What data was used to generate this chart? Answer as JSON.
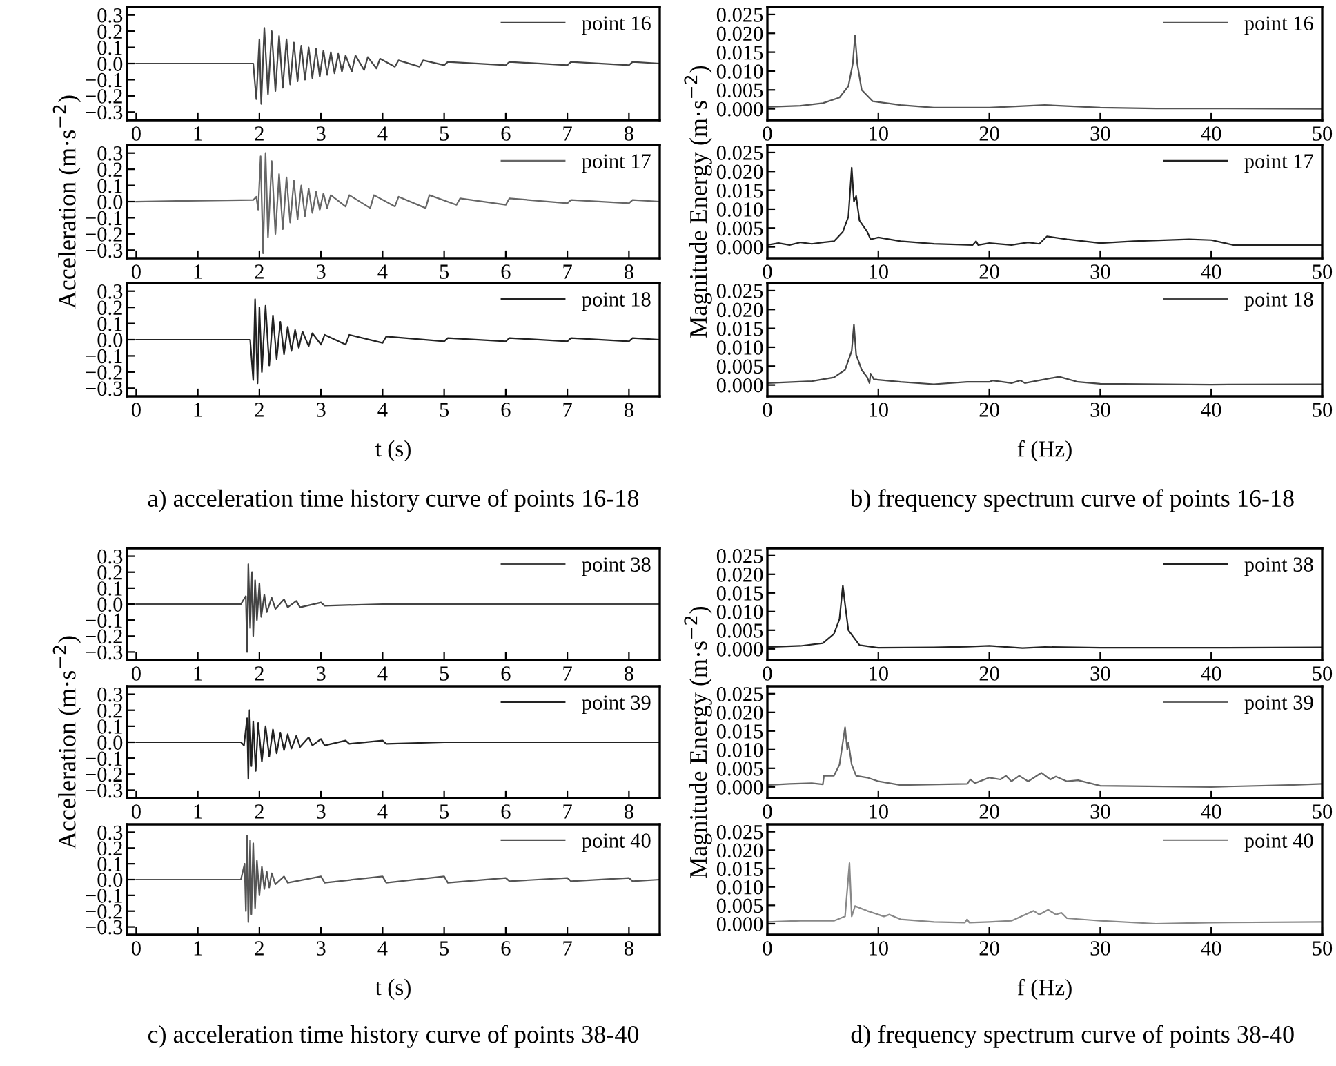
{
  "chart_data": [
    {
      "type": "line",
      "xlim": [
        -0.15,
        8.5
      ],
      "xticks": [
        0,
        1,
        2,
        3,
        4,
        5,
        6,
        7,
        8
      ],
      "ylim": [
        -0.35,
        0.35
      ],
      "yticks": [
        0.3,
        0.2,
        0.1,
        {
          "value": 0,
          "label": "0.0"
        },
        {
          "value": -0.1,
          "label": "−0.1"
        },
        {
          "value": -0.2,
          "label": "−0.2"
        },
        {
          "value": -0.3,
          "label": "−0.3"
        }
      ],
      "legend": "top right",
      "series": [
        {
          "name": "point 16",
          "color": "#444444",
          "x": [
            0,
            1.9,
            1.95,
            2.0,
            2.03,
            2.08,
            2.14,
            2.2,
            2.26,
            2.32,
            2.38,
            2.44,
            2.5,
            2.56,
            2.62,
            2.68,
            2.74,
            2.8,
            2.86,
            2.92,
            2.98,
            3.04,
            3.1,
            3.16,
            3.22,
            3.28,
            3.34,
            3.4,
            3.5,
            3.56,
            3.7,
            3.76,
            3.9,
            3.96,
            4.2,
            4.26,
            4.6,
            4.66,
            5.0,
            5.06,
            6,
            6.06,
            7,
            7.06,
            8,
            8.06,
            8.5
          ],
          "values": [
            0,
            0,
            -0.22,
            0.15,
            -0.25,
            0.22,
            -0.19,
            0.2,
            -0.17,
            0.17,
            -0.15,
            0.15,
            -0.13,
            0.13,
            -0.11,
            0.11,
            -0.1,
            0.1,
            -0.09,
            0.09,
            -0.08,
            0.08,
            -0.07,
            0.07,
            -0.06,
            0.06,
            -0.05,
            0.05,
            -0.05,
            0.05,
            -0.04,
            0.04,
            -0.03,
            0.03,
            -0.02,
            0.02,
            -0.02,
            0.02,
            -0.01,
            0.01,
            -0.01,
            0.01,
            -0.01,
            0.01,
            -0.01,
            0.01,
            0
          ]
        }
      ]
    },
    {
      "type": "line",
      "xlim": [
        0,
        50
      ],
      "xticks": [
        0,
        10,
        20,
        30,
        40,
        50
      ],
      "ylim": [
        -0.003,
        0.027
      ],
      "yticks": [
        0.025,
        {
          "value": 0.02,
          "label": "0.020"
        },
        0.015,
        {
          "value": 0.01,
          "label": "0.010"
        },
        0.005,
        {
          "value": 0,
          "label": "0.000"
        }
      ],
      "legend": "top right",
      "series": [
        {
          "name": "point 16",
          "color": "#555555",
          "x": [
            0,
            3,
            5,
            6.5,
            7.3,
            7.7,
            7.9,
            8.1,
            8.5,
            9.5,
            12,
            15,
            20,
            25,
            28,
            30,
            35,
            40,
            50
          ],
          "values": [
            0.0005,
            0.0008,
            0.0015,
            0.003,
            0.006,
            0.012,
            0.0195,
            0.012,
            0.005,
            0.002,
            0.001,
            0.0003,
            0.0003,
            0.001,
            0.0006,
            0.0003,
            0.0001,
            0.0001,
            0
          ]
        }
      ]
    },
    {
      "type": "line",
      "xlim": [
        -0.15,
        8.5
      ],
      "xticks": [
        0,
        1,
        2,
        3,
        4,
        5,
        6,
        7,
        8
      ],
      "ylim": [
        -0.35,
        0.35
      ],
      "yticks": [
        0.3,
        0.2,
        0.1,
        {
          "value": 0,
          "label": "0.0"
        },
        {
          "value": -0.1,
          "label": "−0.1"
        },
        {
          "value": -0.2,
          "label": "−0.2"
        },
        {
          "value": -0.3,
          "label": "−0.3"
        }
      ],
      "legend": "top right",
      "ylabel": "Acceleration (m·s$^{−2}$)",
      "series": [
        {
          "name": "point 17",
          "color": "#666666",
          "x": [
            0,
            1.9,
            1.95,
            1.98,
            2.02,
            2.06,
            2.1,
            2.14,
            2.2,
            2.26,
            2.32,
            2.38,
            2.44,
            2.5,
            2.56,
            2.62,
            2.68,
            2.74,
            2.8,
            2.86,
            2.92,
            2.98,
            3.04,
            3.1,
            3.16,
            3.4,
            3.46,
            3.8,
            3.86,
            4.2,
            4.26,
            4.7,
            4.76,
            5.2,
            5.26,
            6,
            6.06,
            7,
            7.06,
            8,
            8.06,
            8.5
          ],
          "values": [
            0,
            0.01,
            0.03,
            -0.05,
            0.28,
            -0.32,
            0.3,
            -0.22,
            0.25,
            -0.2,
            0.17,
            -0.17,
            0.15,
            -0.13,
            0.13,
            -0.11,
            0.1,
            -0.09,
            0.08,
            -0.07,
            0.06,
            -0.05,
            0.05,
            -0.04,
            0.04,
            -0.03,
            0.04,
            -0.04,
            0.04,
            -0.03,
            0.03,
            -0.04,
            0.04,
            -0.02,
            0.02,
            -0.02,
            0.02,
            -0.01,
            0.01,
            -0.01,
            0.01,
            0
          ]
        }
      ]
    },
    {
      "type": "line",
      "xlim": [
        0,
        50
      ],
      "xticks": [
        0,
        10,
        20,
        30,
        40,
        50
      ],
      "ylim": [
        -0.003,
        0.027
      ],
      "yticks": [
        0.025,
        {
          "value": 0.02,
          "label": "0.020"
        },
        0.015,
        {
          "value": 0.01,
          "label": "0.010"
        },
        0.005,
        {
          "value": 0,
          "label": "0.000"
        }
      ],
      "legend": "top right",
      "ylabel": "Magnitude Energy (m·s$^{−2}$)",
      "series": [
        {
          "name": "point 17",
          "color": "#222222",
          "x": [
            0,
            1,
            2,
            3,
            4,
            5,
            6,
            6.8,
            7.3,
            7.6,
            7.8,
            8.0,
            8.3,
            9,
            9.3,
            10,
            12,
            15,
            18.5,
            18.8,
            19,
            20,
            22,
            23.5,
            24.5,
            25.2,
            27,
            30,
            33,
            38,
            40,
            42,
            50
          ],
          "values": [
            0.0005,
            0.001,
            0.0005,
            0.0012,
            0.0008,
            0.0012,
            0.0015,
            0.004,
            0.008,
            0.021,
            0.012,
            0.0135,
            0.007,
            0.004,
            0.002,
            0.0025,
            0.0015,
            0.0008,
            0.0005,
            0.0015,
            0.0005,
            0.001,
            0.0005,
            0.0012,
            0.0008,
            0.0028,
            0.002,
            0.001,
            0.0015,
            0.002,
            0.0018,
            0.0005,
            0.0005
          ]
        }
      ]
    },
    {
      "type": "line",
      "xlim": [
        -0.15,
        8.5
      ],
      "xticks": [
        0,
        1,
        2,
        3,
        4,
        5,
        6,
        7,
        8
      ],
      "ylim": [
        -0.35,
        0.35
      ],
      "yticks": [
        0.3,
        0.2,
        0.1,
        {
          "value": 0,
          "label": "0.0"
        },
        {
          "value": -0.1,
          "label": "−0.1"
        },
        {
          "value": -0.2,
          "label": "−0.2"
        },
        {
          "value": -0.3,
          "label": "−0.3"
        }
      ],
      "legend": "top right",
      "xlabel": "t (s)",
      "annotations": [
        "a) acceleration time history curve of points 16-18"
      ],
      "series": [
        {
          "name": "point 18",
          "color": "#222222",
          "x": [
            0,
            1.85,
            1.9,
            1.93,
            1.97,
            2.0,
            2.04,
            2.1,
            2.16,
            2.22,
            2.28,
            2.34,
            2.4,
            2.46,
            2.52,
            2.58,
            2.64,
            2.7,
            2.8,
            2.86,
            3,
            3.06,
            3.4,
            3.46,
            4,
            4.06,
            5,
            5.06,
            6,
            6.06,
            7,
            7.06,
            8,
            8.06,
            8.5
          ],
          "values": [
            0,
            0,
            -0.25,
            0.25,
            -0.27,
            0.2,
            -0.2,
            0.21,
            -0.16,
            0.15,
            -0.12,
            0.11,
            -0.09,
            0.08,
            -0.07,
            0.06,
            -0.05,
            0.05,
            -0.04,
            0.04,
            -0.03,
            0.03,
            -0.03,
            0.03,
            -0.02,
            0.02,
            -0.01,
            0.01,
            -0.01,
            0.01,
            -0.01,
            0.01,
            -0.01,
            0.01,
            0
          ]
        }
      ]
    },
    {
      "type": "line",
      "xlim": [
        0,
        50
      ],
      "xticks": [
        0,
        10,
        20,
        30,
        40,
        50
      ],
      "ylim": [
        -0.003,
        0.027
      ],
      "yticks": [
        0.025,
        {
          "value": 0.02,
          "label": "0.020"
        },
        0.015,
        {
          "value": 0.01,
          "label": "0.010"
        },
        0.005,
        {
          "value": 0,
          "label": "0.000"
        }
      ],
      "legend": "top right",
      "xlabel": "f (Hz)",
      "annotations": [
        "b) frequency spectrum curve of points 16-18"
      ],
      "series": [
        {
          "name": "point 18",
          "color": "#444444",
          "x": [
            0,
            4,
            6,
            7,
            7.6,
            7.8,
            8.0,
            8.5,
            9,
            9.2,
            9.3,
            9.6,
            12,
            15,
            18,
            20,
            20.3,
            22,
            22.8,
            23.2,
            26.3,
            28,
            30,
            40,
            50
          ],
          "values": [
            0.0005,
            0.001,
            0.002,
            0.004,
            0.009,
            0.016,
            0.008,
            0.004,
            0.002,
            0.0005,
            0.003,
            0.0015,
            0.0008,
            0.0002,
            0.0008,
            0.0008,
            0.0012,
            0.0005,
            0.0012,
            0.0005,
            0.0022,
            0.0008,
            0.0003,
            0.0001,
            0.0002
          ]
        }
      ]
    },
    {
      "type": "line",
      "xlim": [
        -0.15,
        8.5
      ],
      "xticks": [
        0,
        1,
        2,
        3,
        4,
        5,
        6,
        7,
        8
      ],
      "ylim": [
        -0.35,
        0.35
      ],
      "yticks": [
        0.3,
        0.2,
        0.1,
        {
          "value": 0,
          "label": "0.0"
        },
        {
          "value": -0.1,
          "label": "−0.1"
        },
        {
          "value": -0.2,
          "label": "−0.2"
        },
        {
          "value": -0.3,
          "label": "−0.3"
        }
      ],
      "legend": "top right",
      "series": [
        {
          "name": "point 38",
          "color": "#444444",
          "x": [
            0,
            1.7,
            1.78,
            1.8,
            1.82,
            1.85,
            1.88,
            1.9,
            1.93,
            1.96,
            2.0,
            2.03,
            2.08,
            2.12,
            2.2,
            2.26,
            2.4,
            2.46,
            2.6,
            2.66,
            3,
            3.06,
            4,
            5,
            6,
            7,
            8,
            8.5
          ],
          "values": [
            0,
            0,
            0.05,
            -0.3,
            0.25,
            -0.15,
            0.2,
            -0.2,
            0.15,
            -0.1,
            0.13,
            -0.08,
            0.06,
            -0.05,
            0.04,
            -0.03,
            0.03,
            -0.02,
            0.02,
            -0.02,
            0.01,
            -0.01,
            0,
            0,
            0,
            0,
            0,
            0
          ]
        }
      ]
    },
    {
      "type": "line",
      "xlim": [
        0,
        50
      ],
      "xticks": [
        0,
        10,
        20,
        30,
        40,
        50
      ],
      "ylim": [
        -0.003,
        0.027
      ],
      "yticks": [
        0.025,
        {
          "value": 0.02,
          "label": "0.020"
        },
        0.015,
        {
          "value": 0.01,
          "label": "0.010"
        },
        0.005,
        {
          "value": 0,
          "label": "0.000"
        }
      ],
      "legend": "top right",
      "series": [
        {
          "name": "point 38",
          "color": "#222222",
          "x": [
            0,
            3,
            5,
            6,
            6.5,
            6.8,
            7.0,
            7.3,
            7.8,
            8.3,
            10,
            15,
            18,
            20,
            23,
            25,
            30,
            40,
            50
          ],
          "values": [
            0.0005,
            0.0008,
            0.0015,
            0.004,
            0.008,
            0.017,
            0.012,
            0.005,
            0.003,
            0.001,
            0.0003,
            0.0004,
            0.0006,
            0.0008,
            0.0002,
            0.0005,
            0.0003,
            0.0003,
            0.0004
          ]
        }
      ]
    },
    {
      "type": "line",
      "xlim": [
        -0.15,
        8.5
      ],
      "xticks": [
        0,
        1,
        2,
        3,
        4,
        5,
        6,
        7,
        8
      ],
      "ylim": [
        -0.35,
        0.35
      ],
      "yticks": [
        0.3,
        0.2,
        0.1,
        {
          "value": 0,
          "label": "0.0"
        },
        {
          "value": -0.1,
          "label": "−0.1"
        },
        {
          "value": -0.2,
          "label": "−0.2"
        },
        {
          "value": -0.3,
          "label": "−0.3"
        }
      ],
      "legend": "top right",
      "ylabel": "Acceleration (m·s$^{−2}$)",
      "series": [
        {
          "name": "point 39",
          "color": "#222222",
          "x": [
            0,
            1.7,
            1.75,
            1.8,
            1.82,
            1.84,
            1.87,
            1.9,
            1.94,
            1.98,
            2.04,
            2.1,
            2.16,
            2.22,
            2.28,
            2.34,
            2.4,
            2.46,
            2.52,
            2.6,
            2.66,
            2.8,
            2.86,
            3,
            3.06,
            3.4,
            3.46,
            4,
            4.06,
            5,
            6,
            7,
            8,
            8.5
          ],
          "values": [
            0,
            0,
            -0.02,
            0.15,
            -0.23,
            0.2,
            -0.15,
            0.13,
            -0.18,
            0.12,
            -0.12,
            0.1,
            -0.09,
            0.08,
            -0.07,
            0.06,
            -0.05,
            0.05,
            -0.04,
            0.04,
            -0.03,
            0.03,
            -0.02,
            0.02,
            -0.02,
            0.01,
            -0.01,
            0.01,
            -0.01,
            0,
            0,
            0,
            0,
            0
          ]
        }
      ]
    },
    {
      "type": "line",
      "xlim": [
        0,
        50
      ],
      "xticks": [
        0,
        10,
        20,
        30,
        40,
        50
      ],
      "ylim": [
        -0.003,
        0.027
      ],
      "yticks": [
        0.025,
        {
          "value": 0.02,
          "label": "0.020"
        },
        0.015,
        {
          "value": 0.01,
          "label": "0.010"
        },
        0.005,
        {
          "value": 0,
          "label": "0.000"
        }
      ],
      "legend": "top right",
      "ylabel": "Magnitude Energy (m·s$^{−2}$)",
      "series": [
        {
          "name": "point 39",
          "color": "#666666",
          "x": [
            0,
            2,
            4,
            5,
            5.1,
            6,
            6.5,
            7,
            7.2,
            7.3,
            7.6,
            8,
            9,
            10,
            12,
            18,
            18.3,
            18.7,
            20,
            21,
            21.5,
            22,
            22.7,
            23.5,
            24.7,
            25.5,
            26,
            27,
            28,
            30,
            40,
            47,
            50
          ],
          "values": [
            0.0005,
            0.0008,
            0.001,
            0.0007,
            0.003,
            0.003,
            0.006,
            0.016,
            0.01,
            0.012,
            0.006,
            0.003,
            0.0025,
            0.0015,
            0.0005,
            0.0008,
            0.002,
            0.001,
            0.0025,
            0.002,
            0.003,
            0.0015,
            0.003,
            0.0015,
            0.0038,
            0.002,
            0.0028,
            0.0015,
            0.0018,
            0.0003,
            0,
            0.0005,
            0.0008
          ]
        }
      ]
    },
    {
      "type": "line",
      "xlim": [
        -0.15,
        8.5
      ],
      "xticks": [
        0,
        1,
        2,
        3,
        4,
        5,
        6,
        7,
        8
      ],
      "ylim": [
        -0.35,
        0.35
      ],
      "yticks": [
        0.3,
        0.2,
        0.1,
        {
          "value": 0,
          "label": "0.0"
        },
        {
          "value": -0.1,
          "label": "−0.1"
        },
        {
          "value": -0.2,
          "label": "−0.2"
        },
        {
          "value": -0.3,
          "label": "−0.3"
        }
      ],
      "legend": "top right",
      "xlabel": "t (s)",
      "annotations": [
        "c) acceleration time history curve of points 38-40"
      ],
      "series": [
        {
          "name": "point 40",
          "color": "#555555",
          "x": [
            0,
            1.7,
            1.76,
            1.78,
            1.8,
            1.82,
            1.85,
            1.87,
            1.9,
            1.93,
            1.96,
            2.0,
            2.04,
            2.08,
            2.12,
            2.16,
            2.2,
            2.26,
            2.4,
            2.46,
            3,
            3.06,
            4,
            4.06,
            5,
            5.06,
            6,
            6.06,
            7,
            7.06,
            8,
            8.06,
            8.5
          ],
          "values": [
            0,
            0,
            0.1,
            -0.2,
            0.28,
            -0.27,
            0.25,
            -0.22,
            0.23,
            -0.18,
            0.12,
            -0.1,
            0.08,
            -0.06,
            0.05,
            -0.05,
            0.04,
            -0.03,
            0.02,
            -0.02,
            0.02,
            -0.02,
            0.02,
            -0.02,
            0.02,
            -0.02,
            0.01,
            -0.01,
            0.01,
            -0.01,
            0.01,
            -0.01,
            0
          ]
        }
      ]
    },
    {
      "type": "line",
      "xlim": [
        0,
        50
      ],
      "xticks": [
        0,
        10,
        20,
        30,
        40,
        50
      ],
      "ylim": [
        -0.003,
        0.027
      ],
      "yticks": [
        0.025,
        {
          "value": 0.02,
          "label": "0.020"
        },
        0.015,
        {
          "value": 0.01,
          "label": "0.010"
        },
        0.005,
        {
          "value": 0,
          "label": "0.000"
        }
      ],
      "legend": "top right",
      "xlabel": "f (Hz)",
      "annotations": [
        "d) frequency spectrum curve of points 38-40"
      ],
      "series": [
        {
          "name": "point 40",
          "color": "#888888",
          "x": [
            0,
            3,
            6,
            7,
            7.4,
            7.6,
            7.9,
            9,
            10.5,
            11,
            12,
            15,
            17.8,
            18,
            18.2,
            20,
            22,
            24,
            24.5,
            25.3,
            26,
            26.5,
            27,
            30,
            35,
            40,
            50
          ],
          "values": [
            0.0005,
            0.0008,
            0.0008,
            0.002,
            0.0165,
            0.002,
            0.0048,
            0.0035,
            0.002,
            0.0025,
            0.0012,
            0.0005,
            0.0003,
            0.0012,
            0.0003,
            0.0005,
            0.0008,
            0.0035,
            0.0025,
            0.0038,
            0.0025,
            0.003,
            0.0015,
            0.0008,
            0,
            0.0003,
            0.0005
          ]
        }
      ]
    }
  ]
}
